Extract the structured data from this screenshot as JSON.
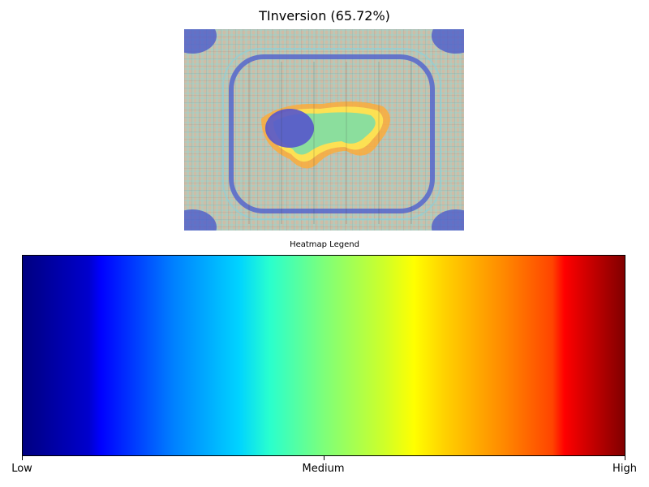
{
  "chart_data": [
    {
      "type": "heatmap",
      "title": "TInversion (65.72%)",
      "description_colors": {
        "low": "#000080",
        "high": "#800000"
      }
    },
    {
      "type": "colorbar",
      "title": "Heatmap Legend",
      "colormap": "jet",
      "orientation": "horizontal",
      "tick_labels": [
        "Low",
        "Medium",
        "High"
      ],
      "tick_values": [
        0,
        0.5,
        1
      ]
    }
  ]
}
